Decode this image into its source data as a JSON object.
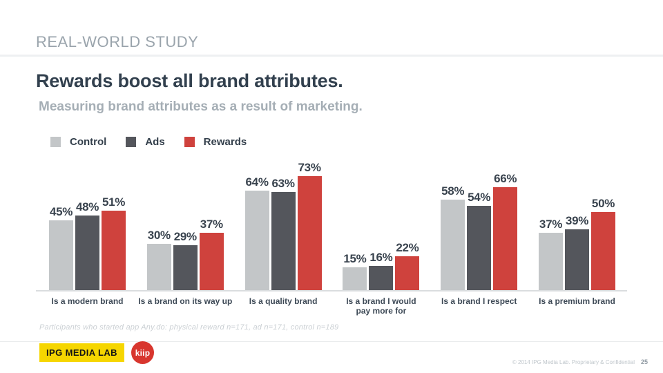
{
  "header": {
    "kicker": "REAL-WORLD STUDY",
    "title": "Rewards boost all brand attributes.",
    "subtitle": "Measuring brand attributes as a result of marketing."
  },
  "chart_data": {
    "type": "bar",
    "title": "Rewards boost all brand attributes.",
    "subtitle": "Measuring brand attributes as a result of marketing.",
    "categories": [
      "Is a modern brand",
      "Is a brand on its way up",
      "Is a quality brand",
      "Is a brand I would pay more for",
      "Is a brand I respect",
      "Is a premium brand"
    ],
    "series": [
      {
        "name": "Control",
        "color": "#c3c6c8",
        "values": [
          45,
          30,
          64,
          15,
          58,
          37
        ]
      },
      {
        "name": "Ads",
        "color": "#54565c",
        "values": [
          48,
          29,
          63,
          16,
          54,
          39
        ]
      },
      {
        "name": "Rewards",
        "color": "#cf423d",
        "values": [
          51,
          37,
          73,
          22,
          66,
          50
        ]
      }
    ],
    "value_suffix": "%",
    "xlabel": "",
    "ylabel": "",
    "ylim": [
      0,
      100
    ],
    "grid": false,
    "legend_position": "top-left",
    "data_labels": true
  },
  "footnote": "Participants who started app Any.do: physical reward n=171, ad n=171, control n=189",
  "footer": {
    "brand_badge": "IPG MEDIA LAB",
    "logo_text": "kiip",
    "copyright": "© 2014 IPG Media Lab. Proprietary & Confidential",
    "page_number": "25"
  },
  "colors": {
    "title_text": "#32404e",
    "kicker_text": "#9aa4ac",
    "subtitle_text": "#a5aeb5",
    "value_label_text": "#39434e",
    "category_label_text": "#3d4956",
    "axis_line": "#dadddf",
    "badge_yellow": "#f6d600",
    "kiip_red": "#d8362e"
  }
}
